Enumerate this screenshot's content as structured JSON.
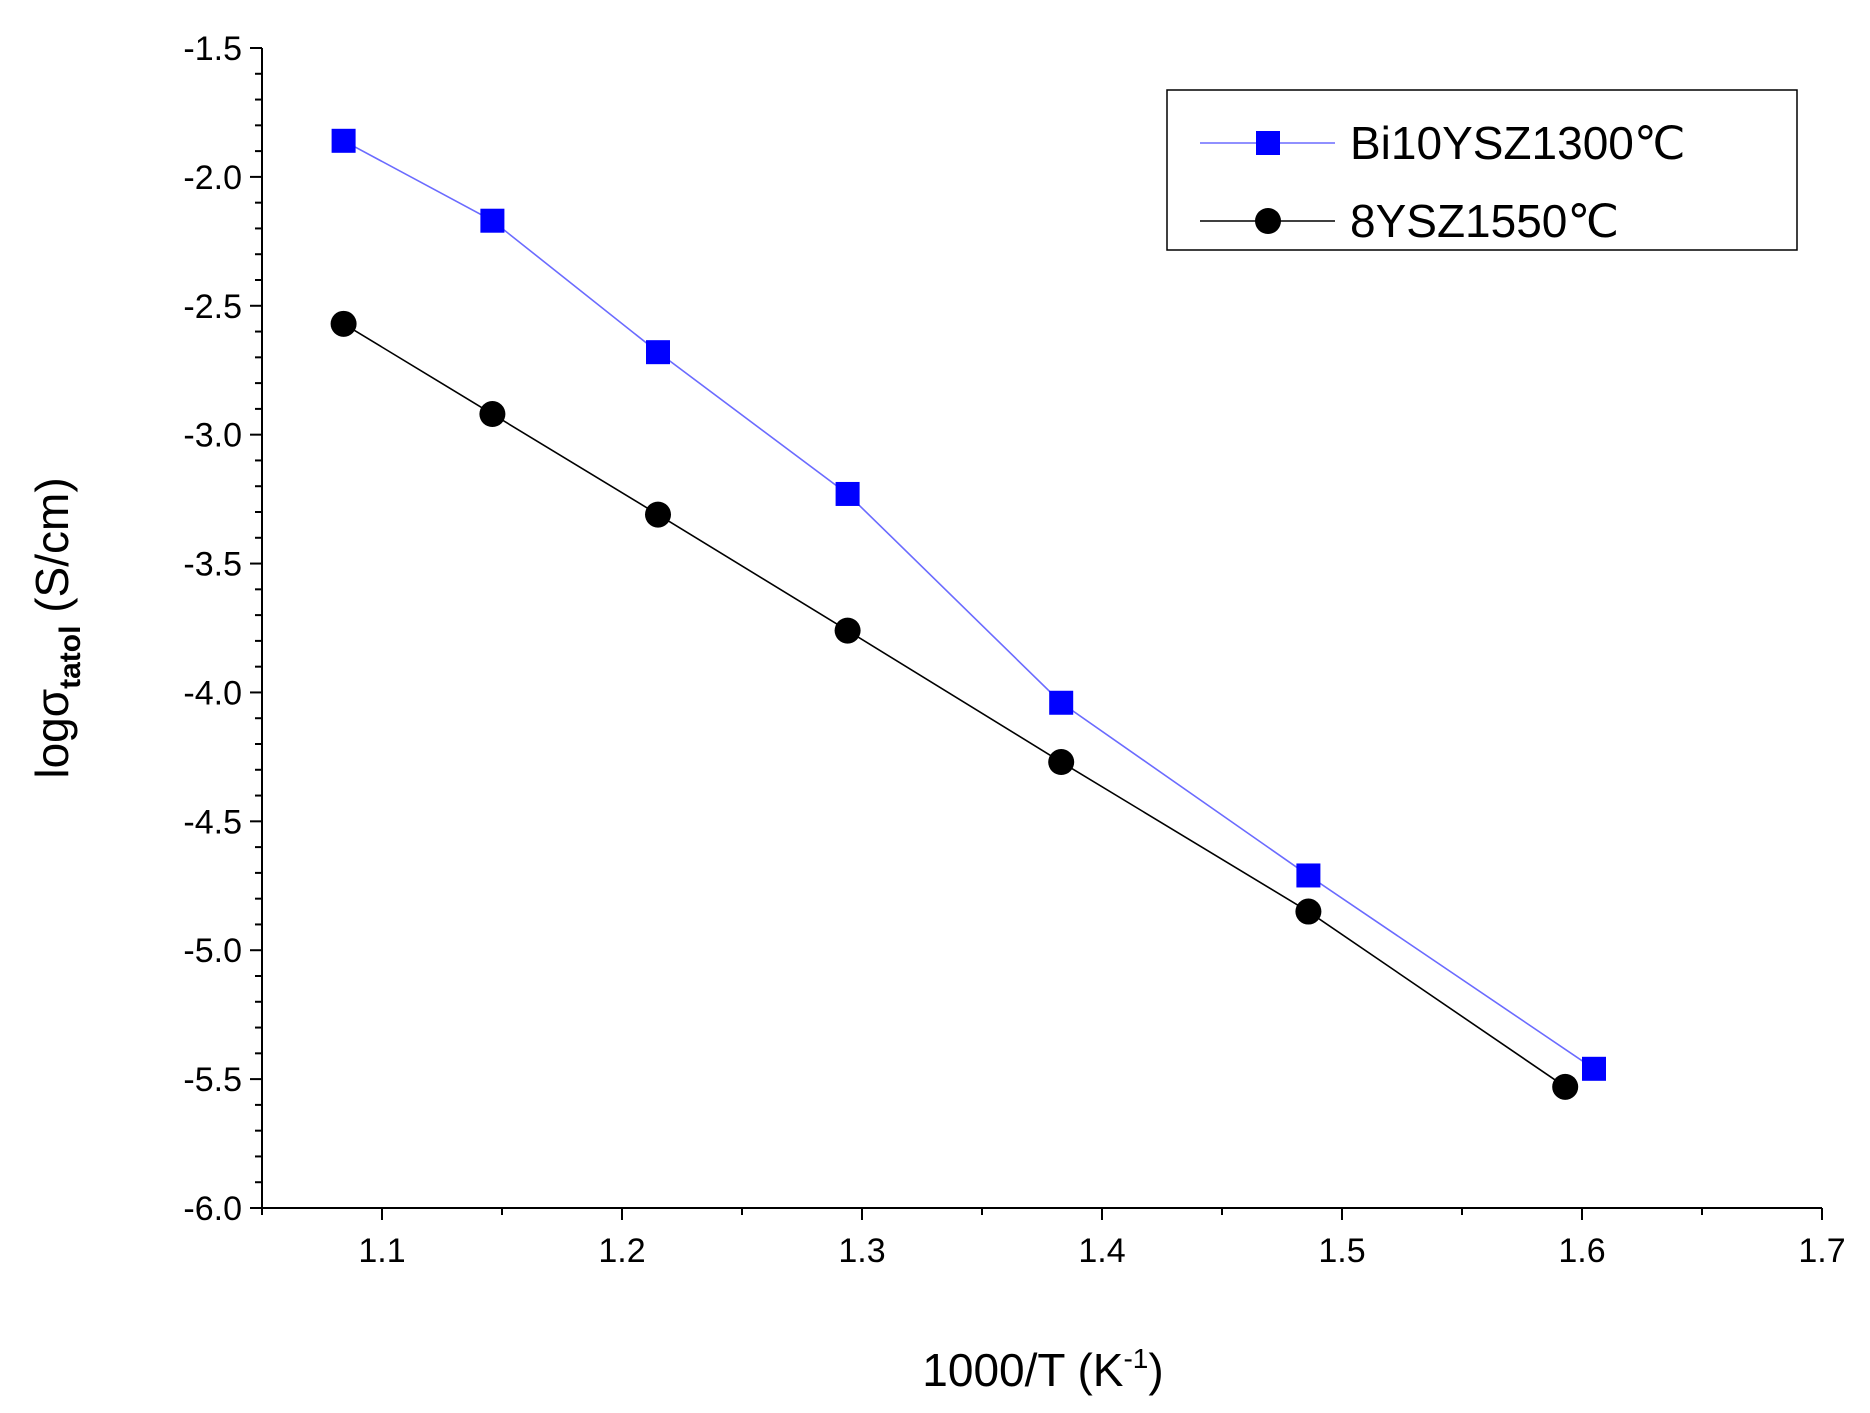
{
  "chart_data": {
    "type": "line",
    "title": "",
    "xlabel": {
      "main": "1000/T (K",
      "sup": "-1",
      "end": ")"
    },
    "ylabel": {
      "main": "logσ",
      "sub": "tatol",
      "end": " (S/cm)"
    },
    "xlim": [
      1.05,
      1.7
    ],
    "ylim": [
      -6.0,
      -1.5
    ],
    "x_ticks": [
      1.1,
      1.2,
      1.3,
      1.4,
      1.5,
      1.6,
      1.7
    ],
    "x_tick_labels": [
      "1.1",
      "1.2",
      "1.3",
      "1.4",
      "1.5",
      "1.6",
      "1.7"
    ],
    "y_ticks": [
      -6.0,
      -5.5,
      -5.0,
      -4.5,
      -4.0,
      -3.5,
      -3.0,
      -2.5,
      -2.0,
      -1.5
    ],
    "y_tick_labels": [
      "-6.0",
      "-5.5",
      "-5.0",
      "-4.5",
      "-4.0",
      "-3.5",
      "-3.0",
      "-2.5",
      "-2.0",
      "-1.5"
    ],
    "grid": false,
    "legend_position": "top-right",
    "series": [
      {
        "name": "Bi10YSZ1300℃",
        "marker": "square",
        "color": "#0000ff",
        "line_color": "#6b6bff",
        "x": [
          1.084,
          1.146,
          1.215,
          1.294,
          1.383,
          1.486,
          1.605
        ],
        "y": [
          -1.86,
          -2.17,
          -2.68,
          -3.23,
          -4.04,
          -4.71,
          -5.46
        ]
      },
      {
        "name": "8YSZ1550℃",
        "marker": "circle",
        "color": "#000000",
        "line_color": "#000000",
        "x": [
          1.084,
          1.146,
          1.215,
          1.294,
          1.383,
          1.486,
          1.593
        ],
        "y": [
          -2.57,
          -2.92,
          -3.31,
          -3.76,
          -4.27,
          -4.85,
          -5.53
        ]
      }
    ]
  }
}
